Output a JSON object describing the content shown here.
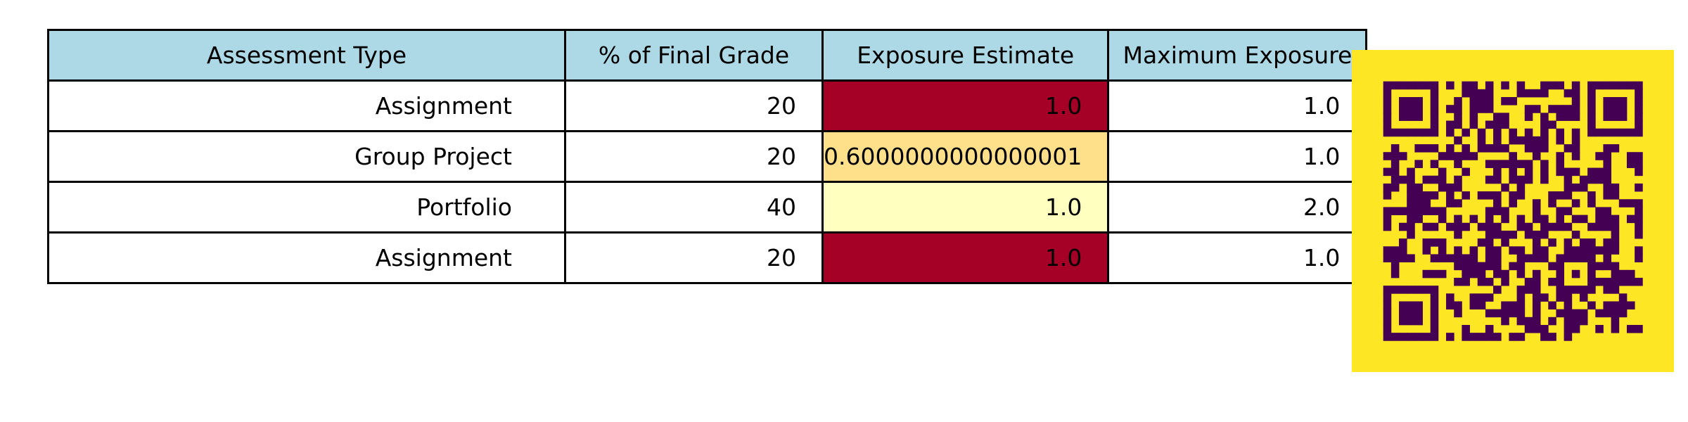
{
  "chart_data": [
    {
      "type": "table",
      "columns": [
        "Assessment Type",
        "% of Final Grade",
        "Exposure Estimate",
        "Maximum Exposure"
      ],
      "rows": [
        [
          "Assignment",
          "20",
          "1.0",
          "1.0"
        ],
        [
          "Group Project",
          "20",
          "0.6000000000000001",
          "1.0"
        ],
        [
          "Portfolio",
          "40",
          "1.0",
          "2.0"
        ],
        [
          "Assignment",
          "20",
          "1.0",
          "1.0"
        ]
      ],
      "header_color": "#add8e6",
      "exposure_estimate_colors": [
        "#a50026",
        "#fee08b",
        "#ffffbf",
        "#a50026"
      ]
    }
  ],
  "qr_code": {
    "description_icon": "qr-code-icon",
    "background_color": "#fde725",
    "module_color": "#440154"
  }
}
